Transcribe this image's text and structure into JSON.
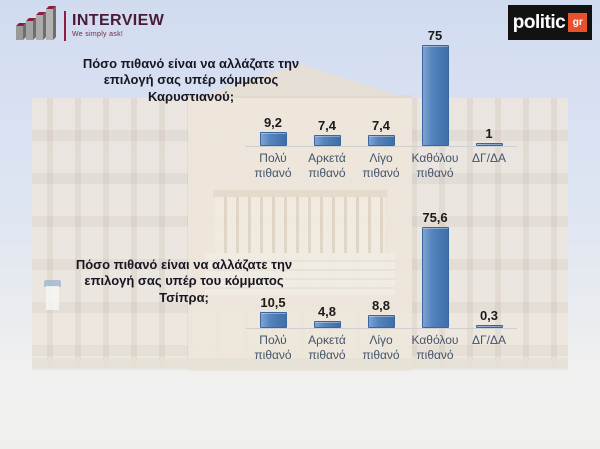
{
  "header": {
    "interview": {
      "brand": "INTERVIEW",
      "tagline": "We simply ask!",
      "icon": "bar-chart-3d-icon",
      "brand_color": "#4a1b36"
    },
    "politic": {
      "brand": "politic",
      "badge": "gr",
      "bg_color": "#121212",
      "badge_color": "#e8512b"
    }
  },
  "background": {
    "scene": "hellenic-parliament-building-faded-photo"
  },
  "chart_data": [
    {
      "type": "bar",
      "title": "Πόσο πιθανό είναι να αλλάζατε την επιλογή σας υπέρ κόμματος Καρυστιανού;",
      "categories": [
        "Πολύ πιθανό",
        "Αρκετά πιθανό",
        "Λίγο πιθανό",
        "Καθόλου πιθανό",
        "ΔΓ/ΔΑ"
      ],
      "values": [
        9.2,
        7.4,
        7.4,
        75,
        1
      ],
      "value_labels": [
        "9,2",
        "7,4",
        "7,4",
        "75",
        "1"
      ],
      "ylim": [
        0,
        80
      ],
      "bar_color": "#4d7db8",
      "grid": false,
      "legend_position": "none"
    },
    {
      "type": "bar",
      "title": "Πόσο πιθανό είναι να αλλάζατε την επιλογή σας υπέρ του κόμματος Τσίπρα;",
      "categories": [
        "Πολύ πιθανό",
        "Αρκετά πιθανό",
        "Λίγο πιθανό",
        "Καθόλου πιθανό",
        "ΔΓ/ΔΑ"
      ],
      "values": [
        10.5,
        4.8,
        8.8,
        75.6,
        0.3
      ],
      "value_labels": [
        "10,5",
        "4,8",
        "8,8",
        "75,6",
        "0,3"
      ],
      "ylim": [
        0,
        80
      ],
      "bar_color": "#4d7db8",
      "grid": false,
      "legend_position": "none"
    }
  ]
}
